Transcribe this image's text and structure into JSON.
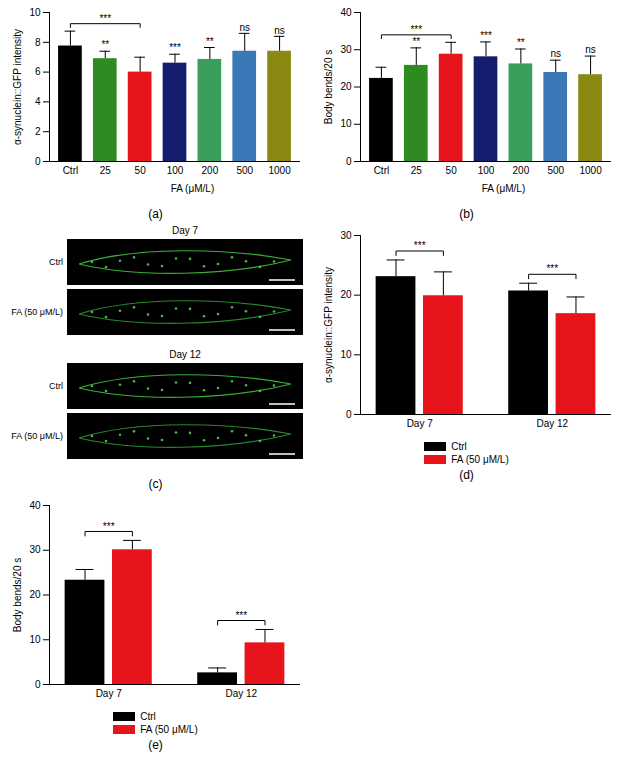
{
  "chart_data": [
    {
      "type": "bar",
      "panel": "(a)",
      "categories": [
        "Ctrl",
        "25",
        "50",
        "100",
        "200",
        "500",
        "1000"
      ],
      "values": [
        7.75,
        6.9,
        6.0,
        6.6,
        6.85,
        7.4,
        7.4
      ],
      "errors": [
        1.0,
        0.5,
        1.0,
        0.6,
        0.8,
        1.2,
        1.0
      ],
      "colors": [
        "#000000",
        "#2e8b22",
        "#e8141c",
        "#141d6e",
        "#3a9e5c",
        "#3a78b8",
        "#8a8a12"
      ],
      "ylabel": "α-synuclein::GFP intensity",
      "xlabel": "FA (μM/L)",
      "ylim": [
        0,
        10
      ],
      "yticks": [
        0,
        2,
        4,
        6,
        8,
        10
      ],
      "annotations": [
        null,
        "**",
        null,
        "***",
        "**",
        "ns",
        "ns"
      ],
      "brackets": [
        {
          "from": "Ctrl",
          "to": "50",
          "label": "***"
        }
      ]
    },
    {
      "type": "bar",
      "panel": "(b)",
      "categories": [
        "Ctrl",
        "25",
        "50",
        "100",
        "200",
        "500",
        "1000"
      ],
      "values": [
        22.3,
        25.8,
        28.8,
        28.1,
        26.2,
        23.9,
        23.3
      ],
      "errors": [
        3.0,
        4.7,
        3.2,
        4.0,
        4.0,
        3.3,
        5.0
      ],
      "colors": [
        "#000000",
        "#2e8b22",
        "#e8141c",
        "#141d6e",
        "#3a9e5c",
        "#3a78b8",
        "#8a8a12"
      ],
      "ylabel": "Body bends/20 s",
      "xlabel": "FA (μM/L)",
      "ylim": [
        0,
        40
      ],
      "yticks": [
        0,
        10,
        20,
        30,
        40
      ],
      "annotations": [
        null,
        "**",
        null,
        "***",
        "**",
        "ns",
        "ns"
      ],
      "brackets": [
        {
          "from": "Ctrl",
          "to": "50",
          "label": "***"
        }
      ]
    },
    {
      "type": "image",
      "panel": "(c)",
      "groups": [
        {
          "title": "Day 7",
          "rows": [
            "Ctrl",
            "FA (50 μM/L)"
          ]
        },
        {
          "title": "Day 12",
          "rows": [
            "Ctrl",
            "FA (50 μM/L)"
          ]
        }
      ]
    },
    {
      "type": "bar",
      "panel": "(d)",
      "categories": [
        "Day 7",
        "Day 12"
      ],
      "series": [
        {
          "name": "Ctrl",
          "color": "#000000",
          "values": [
            23.1,
            20.7
          ],
          "errors": [
            2.8,
            1.3
          ]
        },
        {
          "name": "FA (50 μM/L)",
          "color": "#e8141c",
          "values": [
            19.9,
            16.9
          ],
          "errors": [
            4.0,
            2.8
          ]
        }
      ],
      "ylabel": "α-synuclein::GFP intensity",
      "ylim": [
        0,
        30
      ],
      "yticks": [
        0,
        10,
        20,
        30
      ],
      "brackets": [
        {
          "category": "Day 7",
          "label": "***"
        },
        {
          "category": "Day 12",
          "label": "***"
        }
      ],
      "legend": "bottom"
    },
    {
      "type": "bar",
      "panel": "(e)",
      "categories": [
        "Day 7",
        "Day 12"
      ],
      "series": [
        {
          "name": "Ctrl",
          "color": "#000000",
          "values": [
            23.3,
            2.6
          ],
          "errors": [
            2.4,
            1.1
          ]
        },
        {
          "name": "FA (50 μM/L)",
          "color": "#e8141c",
          "values": [
            30.1,
            9.3
          ],
          "errors": [
            2.1,
            3.0
          ]
        }
      ],
      "ylabel": "Body bends/20 s",
      "ylim": [
        0,
        40
      ],
      "yticks": [
        0,
        10,
        20,
        30,
        40
      ],
      "brackets": [
        {
          "category": "Day 7",
          "label": "***"
        },
        {
          "category": "Day 12",
          "label": "***"
        }
      ],
      "legend": "bottom"
    }
  ]
}
